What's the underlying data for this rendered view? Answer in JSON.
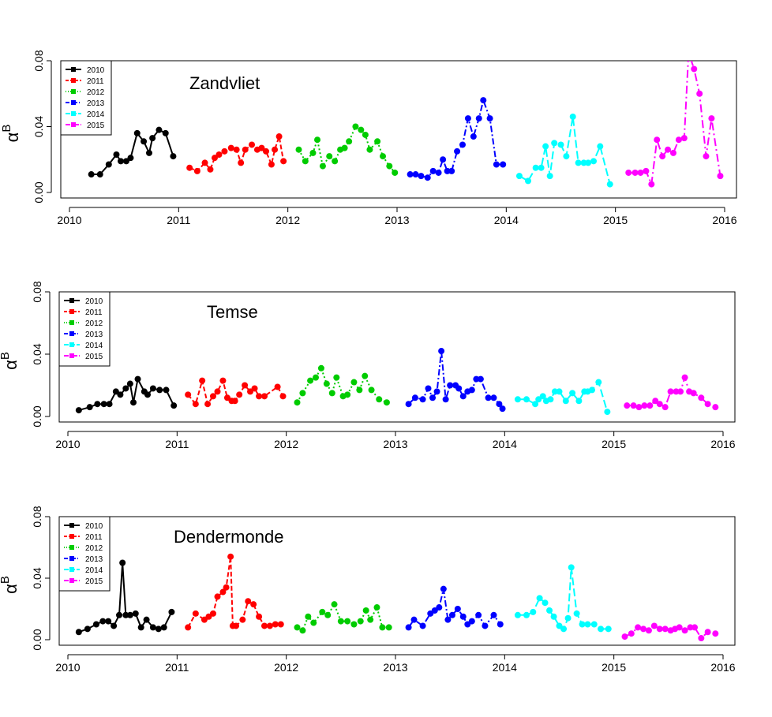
{
  "chart_data": [
    {
      "type": "line",
      "title": "Zandvliet",
      "ylabel": "α",
      "ylabel_superscript": "B",
      "ylim": [
        0.0,
        0.08
      ],
      "xlim": [
        2010.0,
        2016.0
      ],
      "yticks": [
        "0.00",
        "0.04",
        "0.08"
      ],
      "xticks": [
        "2010",
        "2011",
        "2012",
        "2013",
        "2014",
        "2015",
        "2016"
      ],
      "legend_position": "top-left",
      "series": [
        {
          "name": "2010",
          "color": "#000000",
          "dash": "",
          "x": [
            2010.2,
            2010.28,
            2010.36,
            2010.43,
            2010.47,
            2010.52,
            2010.56,
            2010.62,
            2010.68,
            2010.73,
            2010.76,
            2010.82,
            2010.88,
            2010.95
          ],
          "y": [
            0.011,
            0.011,
            0.017,
            0.023,
            0.019,
            0.019,
            0.021,
            0.036,
            0.031,
            0.024,
            0.033,
            0.038,
            0.036,
            0.022
          ]
        },
        {
          "name": "2011",
          "color": "#ff0000",
          "dash": "6,3",
          "x": [
            2011.1,
            2011.17,
            2011.24,
            2011.29,
            2011.33,
            2011.37,
            2011.42,
            2011.48,
            2011.53,
            2011.57,
            2011.61,
            2011.67,
            2011.72,
            2011.76,
            2011.8,
            2011.85,
            2011.88,
            2011.92,
            2011.96
          ],
          "y": [
            0.015,
            0.013,
            0.018,
            0.014,
            0.021,
            0.023,
            0.025,
            0.027,
            0.026,
            0.018,
            0.026,
            0.029,
            0.026,
            0.027,
            0.025,
            0.017,
            0.026,
            0.034,
            0.019
          ]
        },
        {
          "name": "2012",
          "color": "#00cc00",
          "dash": "2,3",
          "x": [
            2012.1,
            2012.16,
            2012.23,
            2012.27,
            2012.32,
            2012.38,
            2012.43,
            2012.48,
            2012.52,
            2012.56,
            2012.62,
            2012.67,
            2012.71,
            2012.75,
            2012.82,
            2012.87,
            2012.93,
            2012.98
          ],
          "y": [
            0.026,
            0.019,
            0.024,
            0.032,
            0.016,
            0.022,
            0.019,
            0.026,
            0.027,
            0.031,
            0.04,
            0.038,
            0.035,
            0.026,
            0.031,
            0.022,
            0.016,
            0.012
          ]
        },
        {
          "name": "2013",
          "color": "#0000ff",
          "dash": "8,3,2,3",
          "x": [
            2013.12,
            2013.17,
            2013.22,
            2013.28,
            2013.33,
            2013.38,
            2013.42,
            2013.46,
            2013.5,
            2013.55,
            2013.6,
            2013.65,
            2013.7,
            2013.75,
            2013.79,
            2013.85,
            2013.91,
            2013.97
          ],
          "y": [
            0.011,
            0.011,
            0.01,
            0.009,
            0.013,
            0.012,
            0.02,
            0.013,
            0.013,
            0.025,
            0.029,
            0.045,
            0.034,
            0.045,
            0.056,
            0.045,
            0.017,
            0.017
          ]
        },
        {
          "name": "2014",
          "color": "#00ffff",
          "dash": "10,4",
          "x": [
            2014.12,
            2014.2,
            2014.27,
            2014.32,
            2014.36,
            2014.4,
            2014.44,
            2014.5,
            2014.55,
            2014.61,
            2014.66,
            2014.71,
            2014.75,
            2014.8,
            2014.86,
            2014.95
          ],
          "y": [
            0.01,
            0.007,
            0.015,
            0.015,
            0.028,
            0.01,
            0.03,
            0.029,
            0.022,
            0.046,
            0.018,
            0.018,
            0.018,
            0.019,
            0.028,
            0.005
          ]
        },
        {
          "name": "2015",
          "color": "#ff00ff",
          "dash": "10,4,2,4",
          "x": [
            2015.12,
            2015.18,
            2015.23,
            2015.28,
            2015.33,
            2015.38,
            2015.43,
            2015.48,
            2015.53,
            2015.58,
            2015.63,
            2015.67,
            2015.72,
            2015.77,
            2015.83,
            2015.88,
            2015.96
          ],
          "y": [
            0.012,
            0.012,
            0.012,
            0.013,
            0.005,
            0.032,
            0.022,
            0.026,
            0.024,
            0.032,
            0.033,
            0.085,
            0.075,
            0.06,
            0.022,
            0.045,
            0.01
          ]
        }
      ]
    },
    {
      "type": "line",
      "title": "Temse",
      "ylabel": "α",
      "ylabel_superscript": "B",
      "ylim": [
        0.0,
        0.08
      ],
      "xlim": [
        2010.0,
        2016.0
      ],
      "yticks": [
        "0.00",
        "0.04",
        "0.08"
      ],
      "xticks": [
        "2010",
        "2011",
        "2012",
        "2013",
        "2014",
        "2015",
        "2016"
      ],
      "legend_position": "top-left",
      "series": [
        {
          "name": "2010",
          "color": "#000000",
          "dash": "",
          "x": [
            2010.1,
            2010.2,
            2010.27,
            2010.33,
            2010.38,
            2010.44,
            2010.48,
            2010.53,
            2010.57,
            2010.6,
            2010.64,
            2010.7,
            2010.73,
            2010.78,
            2010.84,
            2010.9,
            2010.97
          ],
          "y": [
            0.004,
            0.006,
            0.008,
            0.008,
            0.008,
            0.016,
            0.014,
            0.018,
            0.021,
            0.009,
            0.024,
            0.016,
            0.014,
            0.018,
            0.017,
            0.017,
            0.007
          ]
        },
        {
          "name": "2011",
          "color": "#ff0000",
          "dash": "6,3",
          "x": [
            2011.1,
            2011.17,
            2011.23,
            2011.28,
            2011.33,
            2011.37,
            2011.42,
            2011.46,
            2011.5,
            2011.53,
            2011.57,
            2011.62,
            2011.67,
            2011.71,
            2011.75,
            2011.8,
            2011.92,
            2011.97
          ],
          "y": [
            0.014,
            0.008,
            0.023,
            0.008,
            0.013,
            0.016,
            0.023,
            0.012,
            0.01,
            0.01,
            0.014,
            0.02,
            0.016,
            0.018,
            0.013,
            0.013,
            0.019,
            0.013
          ]
        },
        {
          "name": "2012",
          "color": "#00cc00",
          "dash": "2,3",
          "x": [
            2012.1,
            2012.15,
            2012.22,
            2012.27,
            2012.32,
            2012.37,
            2012.42,
            2012.46,
            2012.52,
            2012.56,
            2012.62,
            2012.67,
            2012.72,
            2012.78,
            2012.85,
            2012.92
          ],
          "y": [
            0.009,
            0.015,
            0.023,
            0.025,
            0.031,
            0.021,
            0.015,
            0.025,
            0.013,
            0.014,
            0.022,
            0.017,
            0.026,
            0.017,
            0.011,
            0.009
          ]
        },
        {
          "name": "2013",
          "color": "#0000ff",
          "dash": "8,3,2,3",
          "x": [
            2013.12,
            2013.18,
            2013.25,
            2013.3,
            2013.34,
            2013.38,
            2013.42,
            2013.46,
            2013.5,
            2013.55,
            2013.58,
            2013.62,
            2013.66,
            2013.7,
            2013.74,
            2013.78,
            2013.85,
            2013.9,
            2013.95,
            2013.98
          ],
          "y": [
            0.008,
            0.012,
            0.011,
            0.018,
            0.012,
            0.016,
            0.042,
            0.011,
            0.02,
            0.02,
            0.018,
            0.013,
            0.016,
            0.017,
            0.024,
            0.024,
            0.012,
            0.012,
            0.008,
            0.005
          ]
        },
        {
          "name": "2014",
          "color": "#00ffff",
          "dash": "10,4",
          "x": [
            2014.12,
            2014.2,
            2014.28,
            2014.31,
            2014.35,
            2014.38,
            2014.42,
            2014.46,
            2014.5,
            2014.56,
            2014.62,
            2014.68,
            2014.73,
            2014.76,
            2014.8,
            2014.86,
            2014.94
          ],
          "y": [
            0.011,
            0.011,
            0.008,
            0.011,
            0.013,
            0.01,
            0.011,
            0.016,
            0.016,
            0.01,
            0.015,
            0.01,
            0.016,
            0.016,
            0.017,
            0.022,
            0.003
          ]
        },
        {
          "name": "2015",
          "color": "#ff00ff",
          "dash": "10,4,2,4",
          "x": [
            2015.12,
            2015.18,
            2015.23,
            2015.28,
            2015.33,
            2015.38,
            2015.42,
            2015.47,
            2015.52,
            2015.57,
            2015.61,
            2015.65,
            2015.69,
            2015.73,
            2015.8,
            2015.86,
            2015.93
          ],
          "y": [
            0.007,
            0.007,
            0.006,
            0.007,
            0.007,
            0.01,
            0.008,
            0.006,
            0.016,
            0.016,
            0.016,
            0.025,
            0.016,
            0.015,
            0.012,
            0.008,
            0.006
          ]
        }
      ]
    },
    {
      "type": "line",
      "title": "Dendermonde",
      "ylabel": "α",
      "ylabel_superscript": "B",
      "ylim": [
        0.0,
        0.08
      ],
      "xlim": [
        2010.0,
        2016.0
      ],
      "yticks": [
        "0.00",
        "0.04",
        "0.08"
      ],
      "xticks": [
        "2010",
        "2011",
        "2012",
        "2013",
        "2014",
        "2015",
        "2016"
      ],
      "legend_position": "top-left",
      "series": [
        {
          "name": "2010",
          "color": "#000000",
          "dash": "",
          "x": [
            2010.1,
            2010.18,
            2010.26,
            2010.32,
            2010.37,
            2010.42,
            2010.47,
            2010.5,
            2010.53,
            2010.57,
            2010.62,
            2010.67,
            2010.72,
            2010.78,
            2010.83,
            2010.88,
            2010.95
          ],
          "y": [
            0.005,
            0.007,
            0.01,
            0.012,
            0.012,
            0.009,
            0.016,
            0.05,
            0.016,
            0.016,
            0.017,
            0.008,
            0.013,
            0.008,
            0.007,
            0.008,
            0.018
          ]
        },
        {
          "name": "2011",
          "color": "#ff0000",
          "dash": "6,3",
          "x": [
            2011.1,
            2011.17,
            2011.25,
            2011.29,
            2011.33,
            2011.37,
            2011.42,
            2011.45,
            2011.49,
            2011.51,
            2011.54,
            2011.6,
            2011.65,
            2011.7,
            2011.75,
            2011.8,
            2011.85,
            2011.9,
            2011.95
          ],
          "y": [
            0.008,
            0.017,
            0.013,
            0.015,
            0.017,
            0.028,
            0.031,
            0.034,
            0.054,
            0.009,
            0.009,
            0.013,
            0.025,
            0.023,
            0.015,
            0.009,
            0.009,
            0.01,
            0.01
          ]
        },
        {
          "name": "2012",
          "color": "#00cc00",
          "dash": "2,3",
          "x": [
            2012.1,
            2012.15,
            2012.2,
            2012.25,
            2012.33,
            2012.38,
            2012.44,
            2012.5,
            2012.56,
            2012.62,
            2012.68,
            2012.73,
            2012.77,
            2012.83,
            2012.88,
            2012.94
          ],
          "y": [
            0.008,
            0.006,
            0.015,
            0.011,
            0.018,
            0.016,
            0.023,
            0.012,
            0.012,
            0.01,
            0.012,
            0.019,
            0.013,
            0.021,
            0.008,
            0.008
          ]
        },
        {
          "name": "2013",
          "color": "#0000ff",
          "dash": "8,3,2,3",
          "x": [
            2013.12,
            2013.17,
            2013.25,
            2013.32,
            2013.36,
            2013.4,
            2013.44,
            2013.48,
            2013.52,
            2013.57,
            2013.62,
            2013.66,
            2013.7,
            2013.76,
            2013.82,
            2013.9,
            2013.96
          ],
          "y": [
            0.008,
            0.013,
            0.009,
            0.017,
            0.019,
            0.021,
            0.033,
            0.013,
            0.016,
            0.02,
            0.015,
            0.01,
            0.012,
            0.016,
            0.009,
            0.016,
            0.01
          ]
        },
        {
          "name": "2014",
          "color": "#00ffff",
          "dash": "10,4",
          "x": [
            2014.12,
            2014.2,
            2014.26,
            2014.32,
            2014.37,
            2014.41,
            2014.45,
            2014.5,
            2014.54,
            2014.58,
            2014.61,
            2014.66,
            2014.71,
            2014.76,
            2014.82,
            2014.88,
            2014.95
          ],
          "y": [
            0.016,
            0.016,
            0.018,
            0.027,
            0.024,
            0.019,
            0.015,
            0.009,
            0.007,
            0.014,
            0.047,
            0.017,
            0.01,
            0.01,
            0.01,
            0.007,
            0.007
          ]
        },
        {
          "name": "2015",
          "color": "#ff00ff",
          "dash": "10,4,2,4",
          "x": [
            2015.1,
            2015.16,
            2015.22,
            2015.27,
            2015.32,
            2015.37,
            2015.42,
            2015.47,
            2015.52,
            2015.56,
            2015.6,
            2015.65,
            2015.7,
            2015.74,
            2015.8,
            2015.86,
            2015.93
          ],
          "y": [
            0.002,
            0.004,
            0.008,
            0.007,
            0.006,
            0.009,
            0.007,
            0.007,
            0.006,
            0.007,
            0.008,
            0.006,
            0.008,
            0.008,
            0.001,
            0.005,
            0.004
          ]
        }
      ]
    }
  ]
}
